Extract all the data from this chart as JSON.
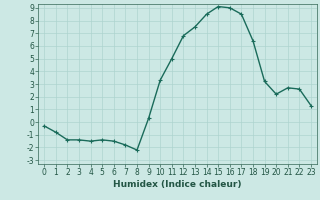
{
  "x": [
    0,
    1,
    2,
    3,
    4,
    5,
    6,
    7,
    8,
    9,
    10,
    11,
    12,
    13,
    14,
    15,
    16,
    17,
    18,
    19,
    20,
    21,
    22,
    23
  ],
  "y": [
    -0.3,
    -0.8,
    -1.4,
    -1.4,
    -1.5,
    -1.4,
    -1.5,
    -1.8,
    -2.2,
    0.3,
    3.3,
    5.0,
    6.8,
    7.5,
    8.5,
    9.1,
    9.0,
    8.5,
    6.4,
    3.2,
    2.2,
    2.7,
    2.6,
    1.3
  ],
  "line_color": "#1a6b5a",
  "marker": "+",
  "marker_size": 3,
  "bg_color": "#cce8e4",
  "grid_color": "#aed4cf",
  "xlabel": "Humidex (Indice chaleur)",
  "ylim": [
    -3,
    9
  ],
  "xlim": [
    -0.5,
    23.5
  ],
  "yticks": [
    -3,
    -2,
    -1,
    0,
    1,
    2,
    3,
    4,
    5,
    6,
    7,
    8,
    9
  ],
  "xticks": [
    0,
    1,
    2,
    3,
    4,
    5,
    6,
    7,
    8,
    9,
    10,
    11,
    12,
    13,
    14,
    15,
    16,
    17,
    18,
    19,
    20,
    21,
    22,
    23
  ],
  "tick_label_fontsize": 5.5,
  "xlabel_fontsize": 6.5,
  "line_width": 1.0
}
